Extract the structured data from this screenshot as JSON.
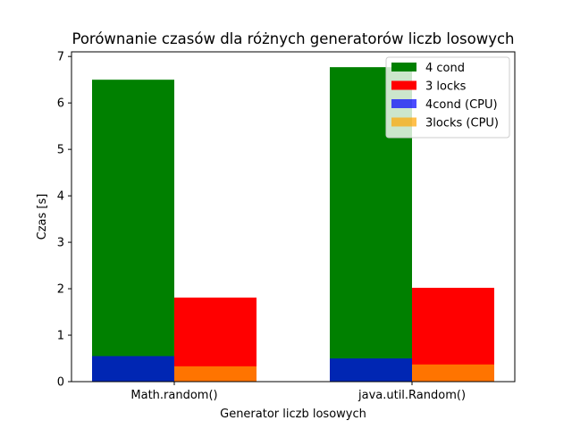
{
  "chart_data": {
    "type": "bar",
    "title": "Porównanie czasów dla różnych generatorów liczb losowych",
    "xlabel": "Generator liczb losowych",
    "ylabel": "Czas [s]",
    "categories": [
      "Math.random()",
      "java.util.Random()"
    ],
    "ylim": [
      0,
      7.1
    ],
    "yticks": [
      0,
      1,
      2,
      3,
      4,
      5,
      6,
      7
    ],
    "grid": false,
    "legend_position": "top-right",
    "series": [
      {
        "name": "4 cond",
        "values": [
          6.5,
          6.77
        ],
        "color": "#008000",
        "group": "4cond"
      },
      {
        "name": "3 locks",
        "values": [
          1.81,
          2.02
        ],
        "color": "#ff0000",
        "group": "3locks"
      },
      {
        "name": "4cond (CPU)",
        "values": [
          0.55,
          0.5
        ],
        "color": "#0000ff",
        "opacity": 0.7,
        "group": "4cond"
      },
      {
        "name": "3locks (CPU)",
        "values": [
          0.33,
          0.37
        ],
        "color": "#ffa500",
        "opacity": 0.7,
        "group": "3locks"
      }
    ]
  }
}
